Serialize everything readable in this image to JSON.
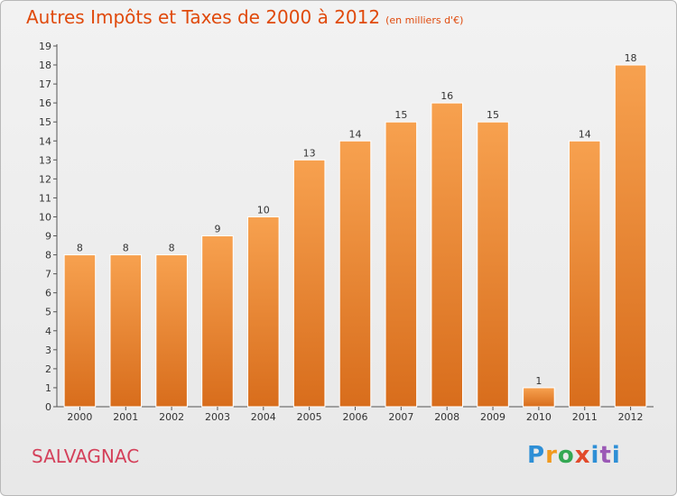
{
  "title": "Autres Impôts et Taxes de 2000 à 2012",
  "unit": "(en milliers d'€)",
  "commune": "SALVAGNAC",
  "logo": "Proxiti",
  "colors": {
    "bar_light": "#f7a14f",
    "bar_dark": "#d86d1c",
    "title": "#e04a0c",
    "commune": "#d4405a"
  },
  "chart_data": {
    "type": "bar",
    "title": "Autres Impôts et Taxes de 2000 à 2012",
    "categories": [
      "2000",
      "2001",
      "2002",
      "2003",
      "2004",
      "2005",
      "2006",
      "2007",
      "2008",
      "2009",
      "2010",
      "2011",
      "2012"
    ],
    "values": [
      8,
      8,
      8,
      9,
      10,
      13,
      14,
      15,
      16,
      15,
      1,
      14,
      18
    ],
    "ylim": [
      0,
      19
    ],
    "yticks": [
      0,
      1,
      2,
      3,
      4,
      5,
      6,
      7,
      8,
      9,
      10,
      11,
      12,
      13,
      14,
      15,
      16,
      17,
      18,
      19
    ],
    "grid": false,
    "xlabel": "",
    "ylabel": ""
  }
}
